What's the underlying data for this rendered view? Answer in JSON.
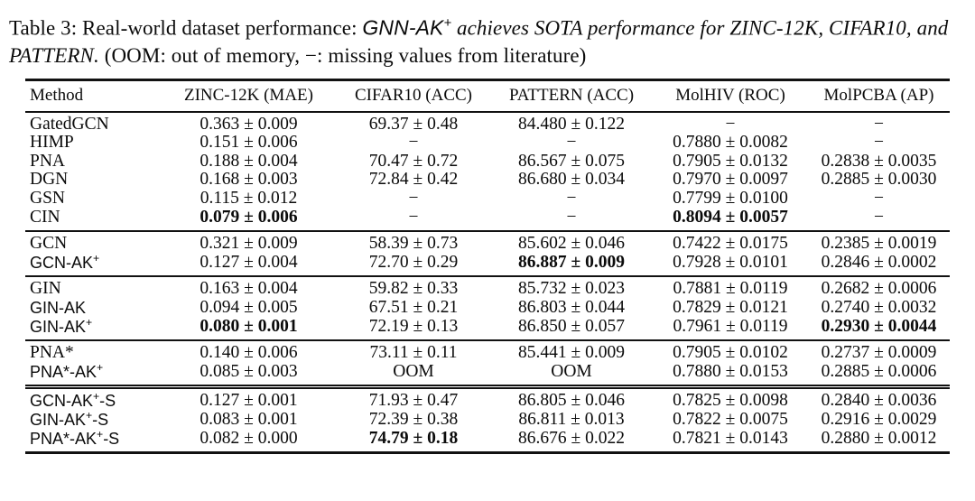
{
  "caption": {
    "roman_prefix": "Table 3: Real-world dataset performance: ",
    "sans_emph": "GNN-AK",
    "sans_emph_sup": "+",
    "serif_emph": " achieves SOTA performance for ZINC-12K, CIFAR10, and PATTERN.",
    "roman_suffix": " (OOM: out of memory, −: missing values from literature)"
  },
  "table": {
    "columns": [
      "Method",
      "ZINC-12K (MAE)",
      "CIFAR10 (ACC)",
      "PATTERN (ACC)",
      "MolHIV (ROC)",
      "MolPCBA (AP)"
    ],
    "groups": [
      {
        "rows": [
          {
            "method": {
              "base": "GatedGCN",
              "sup": "",
              "tail": "",
              "sans": false
            },
            "cells": [
              {
                "t": "0.363 ± 0.009"
              },
              {
                "t": "69.37 ± 0.48"
              },
              {
                "t": "84.480 ± 0.122"
              },
              {
                "t": "−"
              },
              {
                "t": "−"
              }
            ]
          },
          {
            "method": {
              "base": "HIMP",
              "sup": "",
              "tail": "",
              "sans": false
            },
            "cells": [
              {
                "t": "0.151 ± 0.006"
              },
              {
                "t": "−"
              },
              {
                "t": "−"
              },
              {
                "t": "0.7880 ± 0.0082"
              },
              {
                "t": "−"
              }
            ]
          },
          {
            "method": {
              "base": "PNA",
              "sup": "",
              "tail": "",
              "sans": false
            },
            "cells": [
              {
                "t": "0.188 ± 0.004"
              },
              {
                "t": "70.47 ± 0.72"
              },
              {
                "t": "86.567 ± 0.075"
              },
              {
                "t": "0.7905 ± 0.0132"
              },
              {
                "t": "0.2838 ± 0.0035"
              }
            ]
          },
          {
            "method": {
              "base": "DGN",
              "sup": "",
              "tail": "",
              "sans": false
            },
            "cells": [
              {
                "t": "0.168 ± 0.003"
              },
              {
                "t": "72.84 ± 0.42"
              },
              {
                "t": "86.680 ± 0.034"
              },
              {
                "t": "0.7970 ± 0.0097"
              },
              {
                "t": "0.2885 ± 0.0030"
              }
            ]
          },
          {
            "method": {
              "base": "GSN",
              "sup": "",
              "tail": "",
              "sans": false
            },
            "cells": [
              {
                "t": "0.115 ± 0.012"
              },
              {
                "t": "−"
              },
              {
                "t": "−"
              },
              {
                "t": "0.7799 ± 0.0100"
              },
              {
                "t": "−"
              }
            ]
          },
          {
            "method": {
              "base": "CIN",
              "sup": "",
              "tail": "",
              "sans": false
            },
            "cells": [
              {
                "t": "0.079 ± 0.006",
                "b": true
              },
              {
                "t": "−"
              },
              {
                "t": "−"
              },
              {
                "t": "0.8094 ± 0.0057",
                "b": true
              },
              {
                "t": "−"
              }
            ]
          }
        ]
      },
      {
        "rows": [
          {
            "method": {
              "base": "GCN",
              "sup": "",
              "tail": "",
              "sans": false
            },
            "cells": [
              {
                "t": "0.321 ± 0.009"
              },
              {
                "t": "58.39 ± 0.73"
              },
              {
                "t": "85.602 ± 0.046"
              },
              {
                "t": "0.7422 ± 0.0175"
              },
              {
                "t": "0.2385 ± 0.0019"
              }
            ]
          },
          {
            "method": {
              "base": "GCN-AK",
              "sup": "+",
              "tail": "",
              "sans": true
            },
            "cells": [
              {
                "t": "0.127 ± 0.004"
              },
              {
                "t": "72.70 ± 0.29"
              },
              {
                "t": "86.887 ± 0.009",
                "b": true
              },
              {
                "t": "0.7928 ± 0.0101"
              },
              {
                "t": "0.2846 ± 0.0002"
              }
            ]
          }
        ]
      },
      {
        "rows": [
          {
            "method": {
              "base": "GIN",
              "sup": "",
              "tail": "",
              "sans": false
            },
            "cells": [
              {
                "t": "0.163 ± 0.004"
              },
              {
                "t": "59.82 ± 0.33"
              },
              {
                "t": "85.732 ± 0.023"
              },
              {
                "t": "0.7881 ± 0.0119"
              },
              {
                "t": "0.2682 ± 0.0006"
              }
            ]
          },
          {
            "method": {
              "base": "GIN-AK",
              "sup": "",
              "tail": "",
              "sans": true
            },
            "cells": [
              {
                "t": "0.094 ± 0.005"
              },
              {
                "t": "67.51 ± 0.21"
              },
              {
                "t": "86.803 ± 0.044"
              },
              {
                "t": "0.7829 ± 0.0121"
              },
              {
                "t": "0.2740 ± 0.0032"
              }
            ]
          },
          {
            "method": {
              "base": "GIN-AK",
              "sup": "+",
              "tail": "",
              "sans": true
            },
            "cells": [
              {
                "t": "0.080 ± 0.001",
                "b": true
              },
              {
                "t": "72.19 ± 0.13"
              },
              {
                "t": "86.850 ± 0.057"
              },
              {
                "t": "0.7961 ± 0.0119"
              },
              {
                "t": "0.2930 ± 0.0044",
                "b": true
              }
            ]
          }
        ]
      },
      {
        "rows": [
          {
            "method": {
              "base": "PNA*",
              "sup": "",
              "tail": "",
              "sans": false
            },
            "cells": [
              {
                "t": "0.140 ± 0.006"
              },
              {
                "t": "73.11 ± 0.11"
              },
              {
                "t": "85.441 ± 0.009"
              },
              {
                "t": "0.7905 ± 0.0102"
              },
              {
                "t": "0.2737 ± 0.0009"
              }
            ]
          },
          {
            "method": {
              "base": "PNA*-AK",
              "sup": "+",
              "tail": "",
              "sans": true
            },
            "cells": [
              {
                "t": "0.085 ± 0.003"
              },
              {
                "t": "OOM"
              },
              {
                "t": "OOM"
              },
              {
                "t": "0.7880 ± 0.0153"
              },
              {
                "t": "0.2885 ± 0.0006"
              }
            ]
          }
        ]
      },
      {
        "double_rule_above": true,
        "rows": [
          {
            "method": {
              "base": "GCN-AK",
              "sup": "+",
              "tail": "-S",
              "sans": true
            },
            "cells": [
              {
                "t": "0.127 ± 0.001"
              },
              {
                "t": "71.93 ± 0.47"
              },
              {
                "t": "86.805 ± 0.046"
              },
              {
                "t": "0.7825 ± 0.0098"
              },
              {
                "t": "0.2840 ± 0.0036"
              }
            ]
          },
          {
            "method": {
              "base": "GIN-AK",
              "sup": "+",
              "tail": "-S",
              "sans": true
            },
            "cells": [
              {
                "t": "0.083 ± 0.001"
              },
              {
                "t": "72.39 ± 0.38"
              },
              {
                "t": "86.811 ± 0.013"
              },
              {
                "t": "0.7822 ± 0.0075"
              },
              {
                "t": "0.2916 ± 0.0029"
              }
            ]
          },
          {
            "method": {
              "base": "PNA*-AK",
              "sup": "+",
              "tail": "-S",
              "sans": true
            },
            "cells": [
              {
                "t": "0.082 ± 0.000"
              },
              {
                "t": "74.79 ± 0.18",
                "b": true
              },
              {
                "t": "86.676 ± 0.022"
              },
              {
                "t": "0.7821 ± 0.0143"
              },
              {
                "t": "0.2880 ± 0.0012"
              }
            ]
          }
        ]
      }
    ]
  }
}
